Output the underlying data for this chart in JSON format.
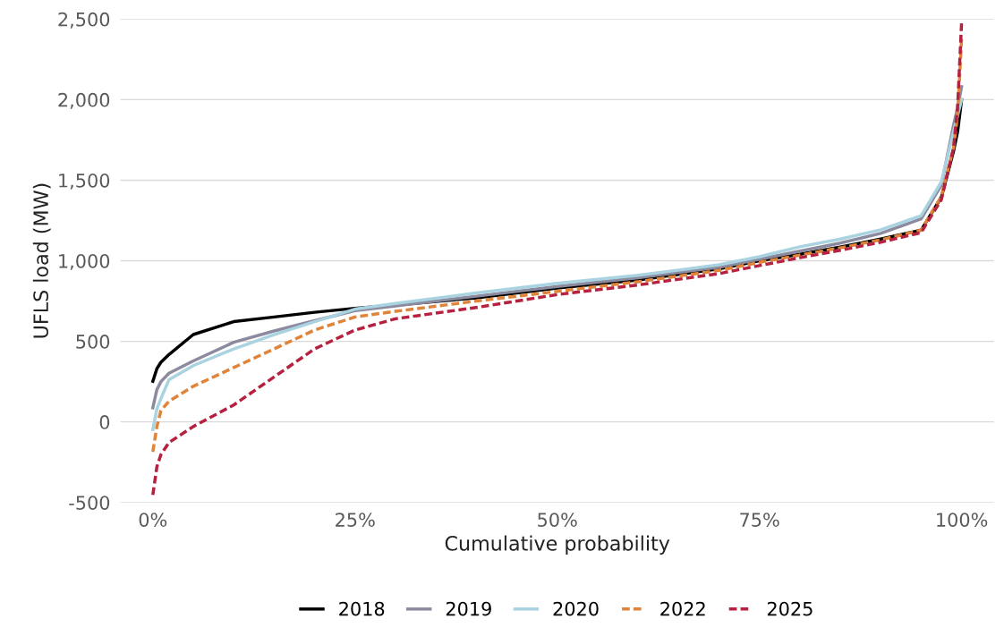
{
  "chart_data": {
    "type": "line",
    "xlabel": "Cumulative probability",
    "ylabel": "UFLS load (MW)",
    "x": [
      0,
      0.5,
      1,
      2,
      5,
      10,
      15,
      20,
      25,
      30,
      40,
      50,
      60,
      70,
      75,
      80,
      85,
      90,
      95,
      97.5,
      99,
      99.5,
      100
    ],
    "series": [
      {
        "name": "2018",
        "color": "#000000",
        "line_style": "solid",
        "values": [
          252,
          330,
          370,
          418,
          542,
          622,
          651,
          680,
          705,
          725,
          770,
          830,
          880,
          950,
          1000,
          1040,
          1085,
          1135,
          1190,
          1395,
          1680,
          1800,
          2000
        ]
      },
      {
        "name": "2019",
        "color": "#8c8a9e",
        "line_style": "solid",
        "values": [
          87,
          200,
          250,
          302,
          378,
          494,
          564,
          628,
          690,
          720,
          780,
          840,
          895,
          960,
          1010,
          1060,
          1110,
          1170,
          1260,
          1470,
          1840,
          1950,
          2080
        ]
      },
      {
        "name": "2020",
        "color": "#a9d3e0",
        "line_style": "solid",
        "values": [
          -47,
          80,
          145,
          262,
          349,
          453,
          541,
          622,
          700,
          735,
          800,
          860,
          910,
          975,
          1025,
          1087,
          1135,
          1192,
          1280,
          1490,
          1800,
          1900,
          2000
        ]
      },
      {
        "name": "2022",
        "color": "#e0843a",
        "line_style": "dashed",
        "values": [
          -186,
          -29,
          70,
          128,
          221,
          337,
          453,
          570,
          651,
          686,
          750,
          810,
          870,
          940,
          990,
          1035,
          1080,
          1130,
          1190,
          1400,
          1700,
          1900,
          2380
        ]
      },
      {
        "name": "2025",
        "color": "#b5213e",
        "line_style": "dashed",
        "values": [
          -453,
          -279,
          -203,
          -128,
          -29,
          105,
          279,
          453,
          570,
          640,
          710,
          790,
          850,
          920,
          970,
          1019,
          1065,
          1115,
          1175,
          1380,
          1700,
          1950,
          2480
        ]
      }
    ],
    "xlim": [
      -4,
      104
    ],
    "xticks": [
      {
        "value": 0,
        "label": "0%"
      },
      {
        "value": 25,
        "label": "25%"
      },
      {
        "value": 50,
        "label": "50%"
      },
      {
        "value": 75,
        "label": "75%"
      },
      {
        "value": 100,
        "label": "100%"
      }
    ],
    "ylim": [
      -500,
      2500
    ],
    "yticks": [
      {
        "value": -500,
        "label": "-500"
      },
      {
        "value": 0,
        "label": "0"
      },
      {
        "value": 500,
        "label": "500"
      },
      {
        "value": 1000,
        "label": "1,000"
      },
      {
        "value": 1500,
        "label": "1,500"
      },
      {
        "value": 2000,
        "label": "2,000"
      },
      {
        "value": 2500,
        "label": "2,500"
      }
    ],
    "grid": "y",
    "legend": "bottom"
  }
}
